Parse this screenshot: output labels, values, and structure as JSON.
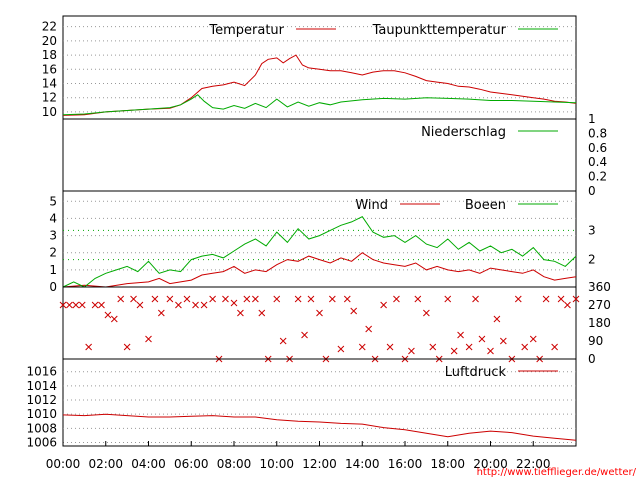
{
  "source_url": "http://www.tiefflieger.de/wetter/",
  "colors": {
    "red": "#cc0000",
    "green": "#00aa00",
    "grid": "#999999",
    "url": "#ff0000"
  },
  "x_ticks": [
    "00:00",
    "02:00",
    "04:00",
    "06:00",
    "08:00",
    "10:00",
    "12:00",
    "14:00",
    "16:00",
    "18:00",
    "20:00",
    "22:00"
  ],
  "chart_data": [
    {
      "type": "line",
      "x_range_hours": [
        0,
        24
      ],
      "ylim": [
        9,
        23.5
      ],
      "y_ticks": [
        "10",
        "12",
        "14",
        "16",
        "18",
        "20",
        "22"
      ],
      "y_tick_values": [
        10,
        12,
        14,
        16,
        18,
        20,
        22
      ],
      "grid": true,
      "legend_placement": "top-right",
      "series": [
        {
          "name": "Temperatur",
          "color": "red",
          "x": [
            0,
            1,
            2,
            3,
            4,
            5,
            5.5,
            6,
            6.5,
            7,
            7.5,
            8,
            8.5,
            9,
            9.3,
            9.6,
            10,
            10.3,
            10.6,
            10.9,
            11.2,
            11.5,
            12,
            12.5,
            13,
            13.5,
            14,
            14.5,
            15,
            15.5,
            16,
            16.5,
            17,
            17.5,
            18,
            18.5,
            19,
            19.5,
            20,
            20.5,
            21,
            21.5,
            22,
            22.5,
            23,
            23.5,
            24
          ],
          "y": [
            9.5,
            9.6,
            10.0,
            10.2,
            10.4,
            10.5,
            11.0,
            12.0,
            13.3,
            13.6,
            13.8,
            14.2,
            13.7,
            15.2,
            16.8,
            17.4,
            17.6,
            16.9,
            17.5,
            18.0,
            16.6,
            16.2,
            16.0,
            15.8,
            15.8,
            15.5,
            15.2,
            15.6,
            15.8,
            15.8,
            15.5,
            15.0,
            14.4,
            14.2,
            14.0,
            13.6,
            13.5,
            13.2,
            12.8,
            12.6,
            12.4,
            12.2,
            12.0,
            11.8,
            11.5,
            11.4,
            11.2
          ]
        },
        {
          "name": "Taupunkttemperatur",
          "color": "green",
          "x": [
            0,
            1,
            2,
            3,
            4,
            5,
            5.5,
            6,
            6.3,
            6.6,
            7,
            7.5,
            8,
            8.5,
            9,
            9.5,
            10,
            10.5,
            11,
            11.5,
            12,
            12.5,
            13,
            14,
            15,
            16,
            17,
            18,
            19,
            20,
            21,
            22,
            23,
            24
          ],
          "y": [
            9.6,
            9.7,
            10.0,
            10.2,
            10.4,
            10.6,
            11.0,
            11.8,
            12.4,
            11.5,
            10.6,
            10.4,
            10.9,
            10.5,
            11.2,
            10.6,
            11.8,
            10.7,
            11.4,
            10.8,
            11.3,
            11.0,
            11.4,
            11.7,
            11.9,
            11.8,
            12.0,
            11.9,
            11.8,
            11.6,
            11.6,
            11.5,
            11.4,
            11.3
          ]
        }
      ]
    },
    {
      "type": "line",
      "x_range_hours": [
        0,
        24
      ],
      "ylim": [
        0,
        1
      ],
      "y_ticks": [
        "1",
        "0.8",
        "0.6",
        "0.4",
        "0.2",
        "0"
      ],
      "y_tick_values": [
        1,
        0.8,
        0.6,
        0.4,
        0.2,
        0
      ],
      "legend_placement": "top-right",
      "series": [
        {
          "name": "Niederschlag",
          "color": "green",
          "x": [
            0,
            24
          ],
          "y": [
            0,
            0
          ]
        }
      ]
    },
    {
      "type": "line",
      "x_range_hours": [
        0,
        24
      ],
      "ylim": [
        0,
        5.6
      ],
      "y_ticks": [
        "0",
        "1",
        "2",
        "3",
        "4",
        "5"
      ],
      "y_tick_values": [
        0,
        1,
        2,
        3,
        4,
        5
      ],
      "right_ticks": [
        "3",
        "2"
      ],
      "right_tick_values": [
        3.3,
        1.6
      ],
      "grid": true,
      "legend_placement": "top-right",
      "series": [
        {
          "name": "Wind",
          "color": "red",
          "x": [
            0,
            1,
            2,
            3,
            4,
            4.5,
            5,
            5.5,
            6,
            6.5,
            7,
            7.5,
            8,
            8.5,
            9,
            9.5,
            10,
            10.5,
            11,
            11.5,
            12,
            12.5,
            13,
            13.5,
            14,
            14.5,
            15,
            15.5,
            16,
            16.5,
            17,
            17.5,
            18,
            18.5,
            19,
            19.5,
            20,
            20.5,
            21,
            21.5,
            22,
            22.5,
            23,
            23.5,
            24
          ],
          "y": [
            0,
            0.1,
            0,
            0.2,
            0.3,
            0.5,
            0.2,
            0.3,
            0.4,
            0.7,
            0.8,
            0.9,
            1.2,
            0.8,
            1.0,
            0.9,
            1.3,
            1.6,
            1.5,
            1.8,
            1.6,
            1.4,
            1.7,
            1.5,
            2.0,
            1.6,
            1.4,
            1.3,
            1.2,
            1.4,
            1.0,
            1.2,
            1.0,
            0.9,
            1.0,
            0.8,
            1.1,
            1.0,
            0.9,
            0.8,
            1.0,
            0.6,
            0.4,
            0.5,
            0.6
          ]
        },
        {
          "name": "Boeen",
          "color": "green",
          "x": [
            0,
            0.5,
            1,
            1.5,
            2,
            2.5,
            3,
            3.5,
            4,
            4.5,
            5,
            5.5,
            6,
            6.5,
            7,
            7.5,
            8,
            8.5,
            9,
            9.5,
            10,
            10.5,
            11,
            11.5,
            12,
            12.5,
            13,
            13.5,
            14,
            14.5,
            15,
            15.5,
            16,
            16.5,
            17,
            17.5,
            18,
            18.5,
            19,
            19.5,
            20,
            20.5,
            21,
            21.5,
            22,
            22.5,
            23,
            23.5,
            24
          ],
          "y": [
            0,
            0.3,
            0,
            0.5,
            0.8,
            1.0,
            1.2,
            0.9,
            1.5,
            0.8,
            1.0,
            0.9,
            1.6,
            1.8,
            1.9,
            1.7,
            2.1,
            2.5,
            2.8,
            2.4,
            3.2,
            2.6,
            3.4,
            2.8,
            3.0,
            3.3,
            3.6,
            3.8,
            4.1,
            3.2,
            2.9,
            3.0,
            2.6,
            3.0,
            2.5,
            2.3,
            2.8,
            2.2,
            2.6,
            2.1,
            2.4,
            2.0,
            2.2,
            1.8,
            2.3,
            1.6,
            1.5,
            1.2,
            1.8
          ]
        }
      ]
    },
    {
      "type": "scatter",
      "x_range_hours": [
        0,
        24
      ],
      "ylim": [
        0,
        360
      ],
      "right_ticks": [
        "360",
        "270",
        "180",
        "90",
        "0"
      ],
      "right_tick_values": [
        360,
        270,
        180,
        90,
        0
      ],
      "series": [
        {
          "name": "",
          "color": "red",
          "marker": "x",
          "x": [
            0,
            0.3,
            0.6,
            0.9,
            1.2,
            1.5,
            1.8,
            2.1,
            2.4,
            2.7,
            3.0,
            3.3,
            3.6,
            4.0,
            4.3,
            4.6,
            5.0,
            5.4,
            5.8,
            6.2,
            6.6,
            7.0,
            7.3,
            7.6,
            8.0,
            8.3,
            8.6,
            9.0,
            9.3,
            9.6,
            10.0,
            10.3,
            10.6,
            11.0,
            11.3,
            11.6,
            12.0,
            12.3,
            12.6,
            13.0,
            13.3,
            13.6,
            14.0,
            14.3,
            14.6,
            15.0,
            15.3,
            15.6,
            16.0,
            16.3,
            16.6,
            17.0,
            17.3,
            17.6,
            18.0,
            18.3,
            18.6,
            19.0,
            19.3,
            19.6,
            20.0,
            20.3,
            20.6,
            21.0,
            21.3,
            21.6,
            22.0,
            22.3,
            22.6,
            23.0,
            23.3,
            23.6,
            24.0
          ],
          "y": [
            270,
            270,
            270,
            270,
            60,
            270,
            270,
            220,
            200,
            300,
            60,
            300,
            270,
            100,
            300,
            230,
            300,
            270,
            300,
            270,
            270,
            300,
            0,
            300,
            280,
            230,
            300,
            300,
            230,
            0,
            300,
            90,
            0,
            300,
            120,
            300,
            230,
            0,
            300,
            50,
            300,
            240,
            60,
            150,
            0,
            270,
            60,
            300,
            0,
            40,
            300,
            230,
            60,
            0,
            300,
            40,
            120,
            60,
            300,
            100,
            40,
            200,
            90,
            0,
            300,
            60,
            100,
            0,
            300,
            60,
            300,
            270,
            300
          ]
        }
      ]
    },
    {
      "type": "line",
      "x_range_hours": [
        0,
        24
      ],
      "ylim": [
        1005.5,
        1017.8
      ],
      "y_ticks": [
        "1006",
        "1008",
        "1010",
        "1012",
        "1014",
        "1016"
      ],
      "y_tick_values": [
        1006,
        1008,
        1010,
        1012,
        1014,
        1016
      ],
      "grid": true,
      "legend_placement": "top-right",
      "series": [
        {
          "name": "Luftdruck",
          "color": "red",
          "x": [
            0,
            1,
            2,
            3,
            4,
            5,
            6,
            7,
            8,
            9,
            10,
            11,
            12,
            13,
            14,
            15,
            16,
            17,
            18,
            19,
            20,
            21,
            22,
            23,
            24
          ],
          "y": [
            1009.9,
            1009.8,
            1010.0,
            1009.8,
            1009.6,
            1009.6,
            1009.7,
            1009.8,
            1009.6,
            1009.6,
            1009.2,
            1009.0,
            1008.9,
            1008.7,
            1008.6,
            1008.1,
            1007.8,
            1007.3,
            1006.8,
            1007.3,
            1007.6,
            1007.4,
            1006.9,
            1006.6,
            1006.3
          ]
        }
      ]
    }
  ]
}
